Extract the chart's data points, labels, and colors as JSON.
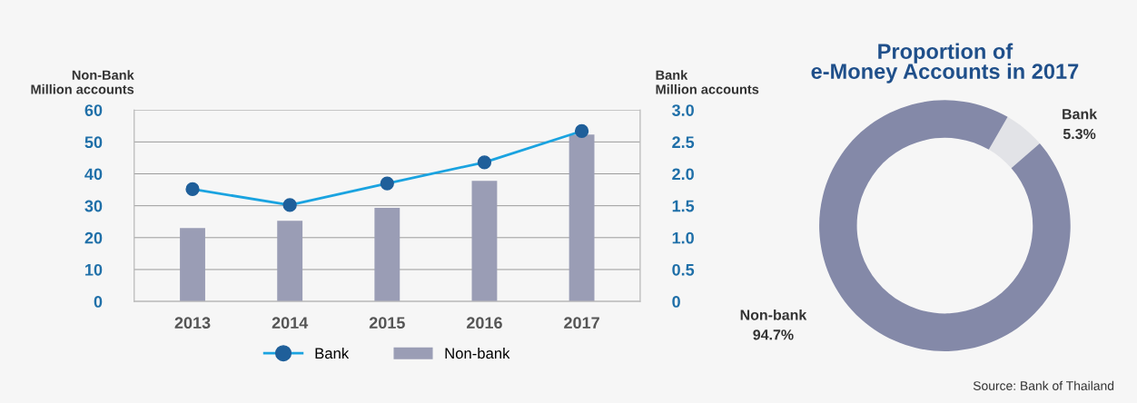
{
  "chart_data": [
    {
      "type": "bar",
      "categories": [
        "2013",
        "2014",
        "2015",
        "2016",
        "2017"
      ],
      "ylabel": "Non-Bank\nMillion accounts",
      "y2label": "Bank\nMillion accounts",
      "series": [
        {
          "name": "Bank",
          "type": "line",
          "axis": "y2",
          "color": "#1aa3e0",
          "values": [
            1.76,
            1.51,
            1.85,
            2.18,
            2.67
          ]
        },
        {
          "name": "Non-bank",
          "type": "bar",
          "color": "#9a9db5",
          "values": [
            23,
            25.3,
            29.3,
            37.8,
            52.3
          ]
        }
      ],
      "ylim": [
        0,
        60
      ],
      "yticks": [
        0,
        10,
        20,
        30,
        40,
        50,
        60
      ],
      "y2lim": [
        0,
        3
      ],
      "y2ticks": [
        0,
        0.5,
        {
          "value": 1,
          "label": "1.0"
        },
        1.5,
        {
          "value": 2,
          "label": "2.0"
        },
        2.5,
        {
          "value": 3,
          "label": "3.0"
        }
      ],
      "grid": "y",
      "legend": "bottom",
      "marker": "circle"
    },
    {
      "type": "donut",
      "title": "Proportion of\ne-Money Accounts in 2017",
      "categories": [
        "Bank",
        "Non-bank"
      ],
      "values": [
        5.3,
        94.7
      ],
      "colors": [
        "#e2e3e7",
        "#8489a8"
      ],
      "value_labels": [
        "5.3%",
        "94.7%"
      ],
      "annotations": [
        "Source: Bank of Thailand"
      ]
    }
  ]
}
